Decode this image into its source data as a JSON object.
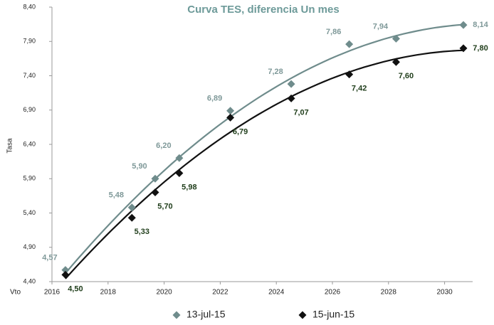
{
  "chart_data": {
    "type": "scatter",
    "title": "Curva TES, diferencia Un mes",
    "x_label": "Vto",
    "y_label": "Tasa",
    "x": [
      2016.48,
      2018.85,
      2019.68,
      2020.54,
      2022.36,
      2024.53,
      2026.6,
      2028.27,
      2030.67
    ],
    "series": [
      {
        "name": "13-jul-15",
        "color": "#6f8c8c",
        "label_color": "#7f9999",
        "values": [
          4.57,
          5.48,
          5.9,
          6.2,
          6.89,
          7.28,
          7.86,
          7.94,
          8.14
        ],
        "value_labels": [
          "4,57",
          "5,48",
          "5,90",
          "6,20",
          "6,89",
          "7,28",
          "7,86",
          "7,94",
          "8,14"
        ]
      },
      {
        "name": "15-jun-15",
        "color": "#111111",
        "label_color": "#1f3d1a",
        "values": [
          4.5,
          5.33,
          5.7,
          5.98,
          6.79,
          7.07,
          7.42,
          7.6,
          7.8
        ],
        "value_labels": [
          "4,50",
          "5,33",
          "5,70",
          "5,98",
          "6,79",
          "7,07",
          "7,42",
          "7,60",
          "7,80"
        ]
      }
    ],
    "xlim": [
      2016,
      2031
    ],
    "xticks": [
      2016,
      2018,
      2020,
      2022,
      2024,
      2026,
      2028,
      2030
    ],
    "ylim": [
      4.4,
      8.4
    ],
    "yticks": [
      {
        "value": 4.4,
        "label": "4,40"
      },
      {
        "value": 4.9,
        "label": "4,90"
      },
      {
        "value": 5.4,
        "label": "5,40"
      },
      {
        "value": 5.9,
        "label": "5,90"
      },
      {
        "value": 6.4,
        "label": "6,40"
      },
      {
        "value": 6.9,
        "label": "6,90"
      },
      {
        "value": 7.4,
        "label": "7,40"
      },
      {
        "value": 7.9,
        "label": "7,90"
      },
      {
        "value": 8.4,
        "label": "8,40"
      }
    ],
    "trendline": true,
    "grid": false,
    "legend": "bottom"
  }
}
